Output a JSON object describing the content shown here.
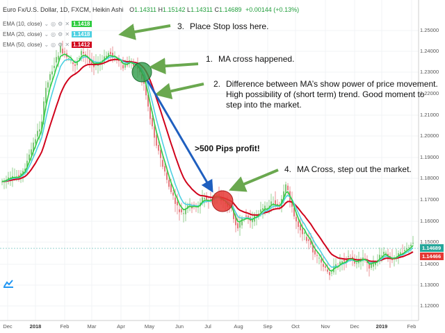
{
  "header": {
    "symbol": "Euro Fx/U.S. Dollar, 1D, FXCM, Heikin Ashi",
    "open_label": "O",
    "open": "1.14311",
    "high_label": "H",
    "high": "1.15142",
    "low_label": "L",
    "low": "1.14311",
    "close_label": "C",
    "close": "1.14689",
    "change": "+0.00144 (+0.13%)"
  },
  "indicators": [
    {
      "label": "EMA (10, close)",
      "value": "1.1418",
      "color": "#2ecc40"
    },
    {
      "label": "EMA (20, close)",
      "value": "1.1418",
      "color": "#4dd0e1"
    },
    {
      "label": "EMA (50, close)",
      "value": "1.1412",
      "color": "#d0021b"
    }
  ],
  "annotations": {
    "a3_num": "3.",
    "a3_text": "Place Stop loss here.",
    "a1_num": "1.",
    "a1_text": "MA cross happened.",
    "a2_num": "2.",
    "a2_line1": "Difference between MA’s show power of price movement.",
    "a2_line2": "High possibility of (short term) trend. Good moment to",
    "a2_line3": "step into the market.",
    "profit": ">500 Pips profit!",
    "a4_num": "4.",
    "a4_text": "MA Cross, step out the market."
  },
  "price_axis": {
    "ticks": [
      "1.25000",
      "1.24000",
      "1.23000",
      "1.22000",
      "1.21000",
      "1.20000",
      "1.19000",
      "1.18000",
      "1.17000",
      "1.16000",
      "1.15000",
      "1.14000",
      "1.13000",
      "1.12000"
    ],
    "last_price": "1.14689",
    "last_price_color": "#26a69a",
    "ema_price": "1.14466",
    "ema_price_color": "#e53935"
  },
  "time_axis": {
    "ticks": [
      "Dec",
      "2018",
      "Feb",
      "Mar",
      "Apr",
      "May",
      "Jun",
      "Jul",
      "Aug",
      "Sep",
      "Oct",
      "Nov",
      "Dec",
      "2019",
      "Feb"
    ]
  },
  "colors": {
    "bull": "#7cc576",
    "bear": "#e5797d",
    "entry_circle": "#2e9c4a",
    "exit_circle": "#e53935",
    "arrow_green": "#6aa84f",
    "arrow_blue": "#1f5fbf"
  },
  "icons": {
    "logo": "tradingview-logo-icon"
  }
}
